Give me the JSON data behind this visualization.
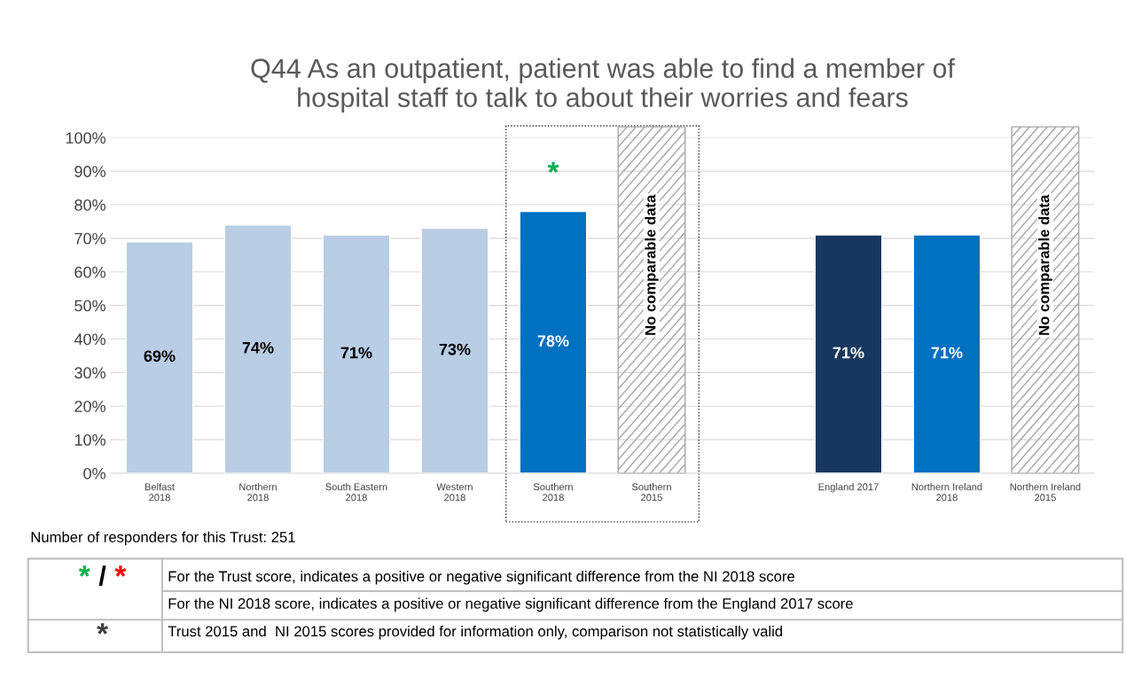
{
  "chart_data": {
    "type": "bar",
    "title": "Q44 As an outpatient, patient was able to find a member of\nhospital staff to talk to about their worries and fears",
    "categories": [
      "Belfast\n2018",
      "Northern\n2018",
      "South Eastern\n2018",
      "Western\n2018",
      "Southern\n2018",
      "Southern\n2015",
      null,
      "England 2017",
      "Northern Ireland\n2018",
      "Northern Ireland\n2015"
    ],
    "values": [
      69,
      74,
      71,
      73,
      78,
      null,
      null,
      71,
      71,
      null
    ],
    "colors": [
      "#b9cde5",
      "#b9cde5",
      "#b9cde5",
      "#b9cde5",
      "#0070c0",
      null,
      null,
      "#17375e",
      "#0070c0",
      null
    ],
    "value_labels": [
      "69%",
      "74%",
      "71%",
      "73%",
      "78%",
      null,
      null,
      "71%",
      "71%",
      null
    ],
    "ylim": [
      0,
      100
    ],
    "yticks": [
      {
        "value": 0,
        "label": "0%"
      },
      {
        "value": 10,
        "label": "10%"
      },
      {
        "value": 20,
        "label": "20%"
      },
      {
        "value": 30,
        "label": "30%"
      },
      {
        "value": 40,
        "label": "40%"
      },
      {
        "value": 50,
        "label": "50%"
      },
      {
        "value": 60,
        "label": "60%"
      },
      {
        "value": 70,
        "label": "70%"
      },
      {
        "value": 80,
        "label": "80%"
      },
      {
        "value": 90,
        "label": "90%"
      },
      {
        "value": 100,
        "label": "100%"
      }
    ],
    "grid": "y",
    "annotations": [
      "*",
      "No comparable data",
      "No comparable data",
      "Number of responders for this Trust: 251",
      "*",
      "/",
      "*",
      "For the Trust score, indicates a positive or negative significant difference from the NI 2018 score",
      "For the NI 2018 score, indicates a positive or negative significant difference from the England 2017 score",
      "*",
      "Trust 2015 and  NI 2015 scores provided for information only, comparison not statistically valid"
    ]
  }
}
